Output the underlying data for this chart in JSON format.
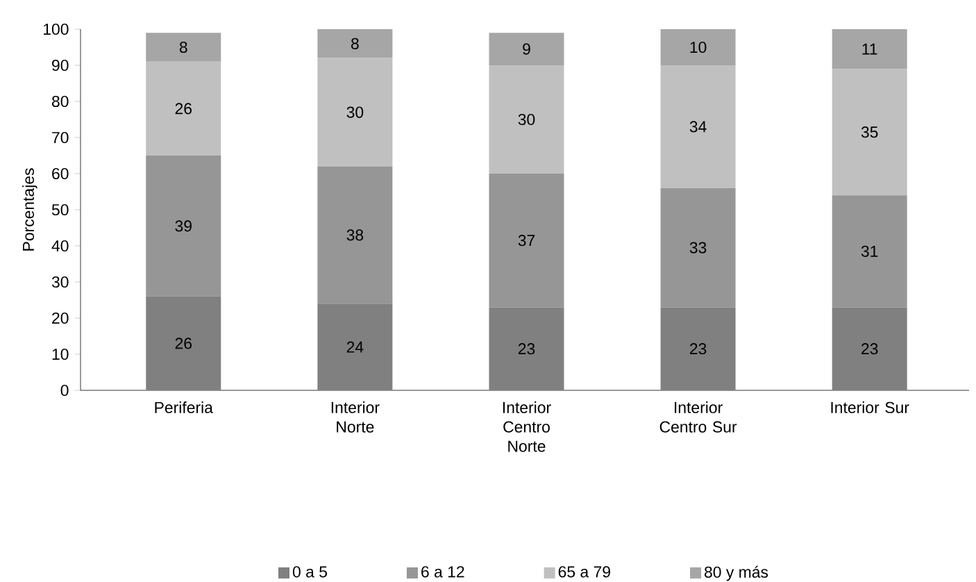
{
  "chart_data": {
    "type": "bar",
    "stacked": true,
    "ylabel": "Porcentajes",
    "categories": [
      "Periferia",
      "Interior Norte",
      "Interior Centro Norte",
      "Interior Centro Sur",
      "Interior Sur"
    ],
    "series": [
      {
        "name": "0 a 5",
        "color": "#808080",
        "values": [
          26,
          24,
          23,
          23,
          23
        ]
      },
      {
        "name": "6 a 12",
        "color": "#969696",
        "values": [
          39,
          38,
          37,
          33,
          31
        ]
      },
      {
        "name": "65 a 79",
        "color": "#c0c0c0",
        "values": [
          26,
          30,
          30,
          34,
          35
        ]
      },
      {
        "name": "80 y más",
        "color": "#a6a6a6",
        "values": [
          8,
          8,
          9,
          10,
          11
        ]
      }
    ],
    "ylim": [
      0,
      100
    ],
    "yticks": [
      0,
      10,
      20,
      30,
      40,
      50,
      60,
      70,
      80,
      90,
      100
    ],
    "grid": false,
    "legend": "bottom",
    "data_labels": true
  }
}
